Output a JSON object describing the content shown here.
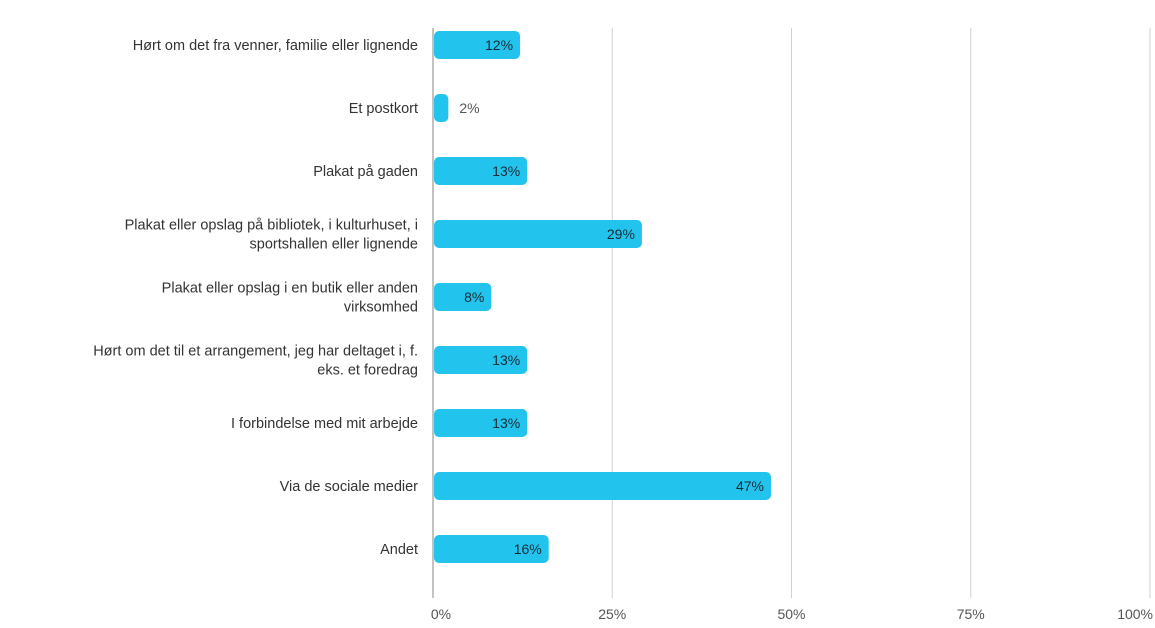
{
  "chart_data": {
    "type": "bar",
    "orientation": "horizontal",
    "categories": [
      [
        "Hørt om det fra venner, familie eller lignende"
      ],
      [
        "Et postkort"
      ],
      [
        "Plakat på gaden"
      ],
      [
        "Plakat eller opslag på bibliotek, i kulturhuset, i",
        "sportshallen eller lignende"
      ],
      [
        "Plakat eller opslag i en butik eller anden",
        "virksomhed"
      ],
      [
        "Hørt om det til et arrangement, jeg har deltaget i, f.",
        "eks. et foredrag"
      ],
      [
        "I forbindelse med mit arbejde"
      ],
      [
        "Via de sociale medier"
      ],
      [
        "Andet"
      ]
    ],
    "values": [
      12,
      2,
      13,
      29,
      8,
      13,
      13,
      47,
      16
    ],
    "value_labels": [
      "12%",
      "2%",
      "13%",
      "29%",
      "8%",
      "13%",
      "13%",
      "47%",
      "16%"
    ],
    "xlim": [
      0,
      100
    ],
    "x_ticks": [
      0,
      25,
      50,
      75,
      100
    ],
    "x_tick_labels": [
      "0%",
      "25%",
      "50%",
      "75%",
      "100%"
    ],
    "grid": true,
    "legend": "none",
    "bar_color": "#22c4ee",
    "grid_color": "#d0d0d0",
    "label_color": "#333333"
  }
}
